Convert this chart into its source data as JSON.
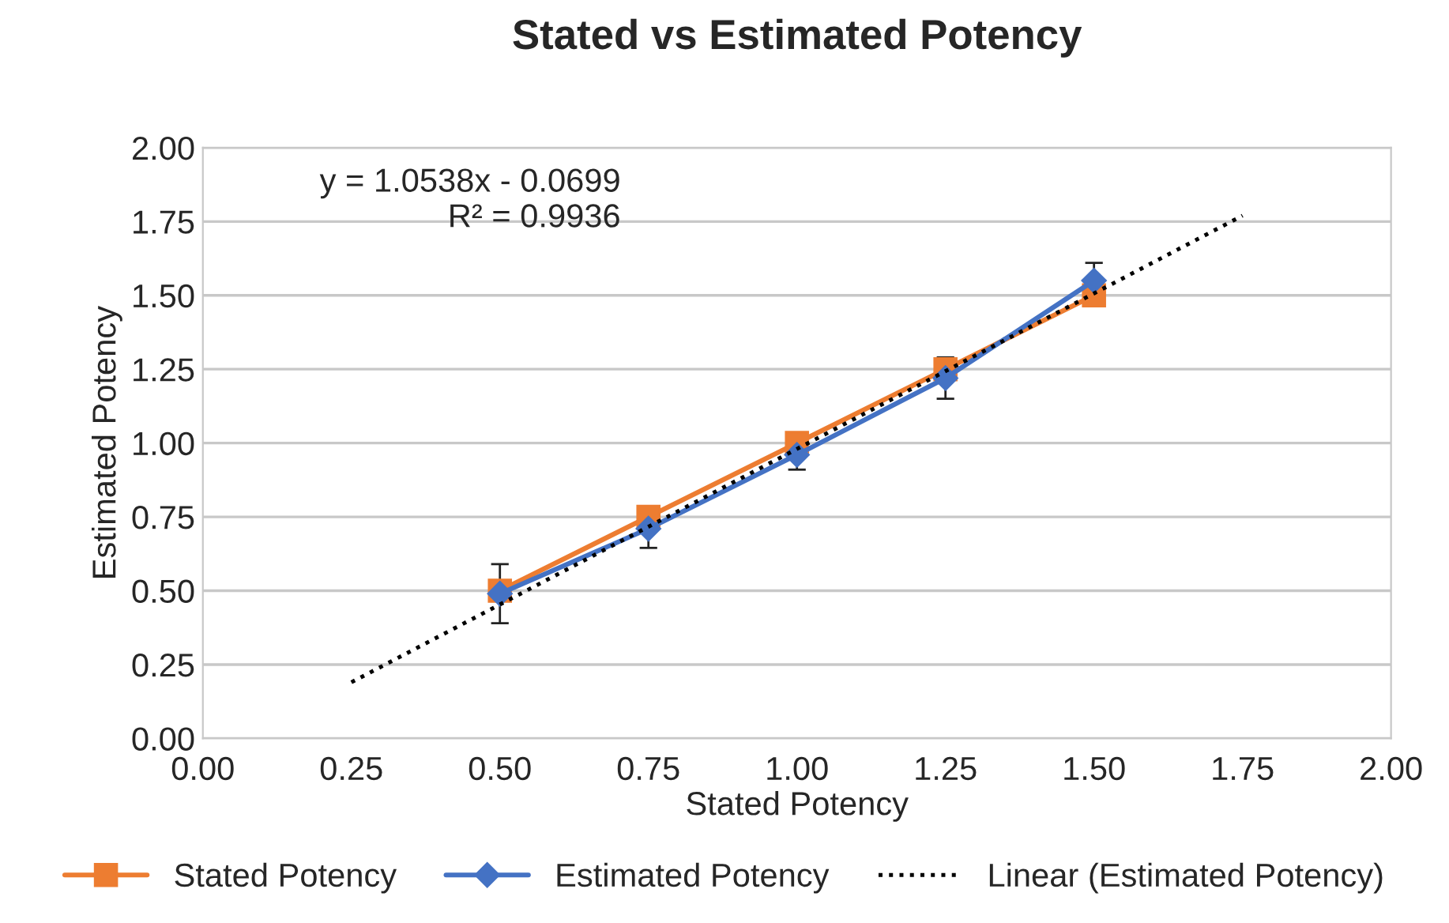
{
  "chart_data": {
    "type": "line",
    "title": "Stated vs Estimated Potency",
    "xlabel": "Stated Potency",
    "ylabel": "Estimated Potency",
    "xlim": [
      0,
      2
    ],
    "xticks": [
      {
        "value": 0,
        "label": "0.00"
      },
      {
        "value": 0.25,
        "label": "0.25"
      },
      {
        "value": 0.5,
        "label": "0.50"
      },
      {
        "value": 0.75,
        "label": "0.75"
      },
      {
        "value": 1,
        "label": "1.00"
      },
      {
        "value": 1.25,
        "label": "1.25"
      },
      {
        "value": 1.5,
        "label": "1.50"
      },
      {
        "value": 1.75,
        "label": "1.75"
      },
      {
        "value": 2,
        "label": "2.00"
      }
    ],
    "ylim": [
      0,
      2
    ],
    "yticks": [
      {
        "value": 0,
        "label": "0.00"
      },
      {
        "value": 0.25,
        "label": "0.25"
      },
      {
        "value": 0.5,
        "label": "0.50"
      },
      {
        "value": 0.75,
        "label": "0.75"
      },
      {
        "value": 1,
        "label": "1.00"
      },
      {
        "value": 1.25,
        "label": "1.25"
      },
      {
        "value": 1.5,
        "label": "1.50"
      },
      {
        "value": 1.75,
        "label": "1.75"
      },
      {
        "value": 2,
        "label": "2.00"
      }
    ],
    "grid": "y",
    "legend": "bottom",
    "annotations": [
      "y = 1.0538x - 0.0699\nR² = 0.9936"
    ],
    "series": [
      {
        "name": "Stated Potency",
        "color": "#ed7d31",
        "marker": "square",
        "line_style": "solid",
        "x": [
          0.5,
          0.75,
          1.0,
          1.25,
          1.5
        ],
        "values": [
          0.5,
          0.75,
          1.0,
          1.25,
          1.5
        ]
      },
      {
        "name": "Estimated Potency",
        "color": "#4472c4",
        "marker": "diamond",
        "line_style": "solid",
        "x": [
          0.5,
          0.75,
          1.0,
          1.25,
          1.5
        ],
        "values": [
          0.49,
          0.71,
          0.96,
          1.22,
          1.55
        ],
        "errors": [
          0.1,
          0.065,
          0.05,
          0.07,
          0.06
        ]
      },
      {
        "name": "Linear (Estimated Potency)",
        "color": "#000000",
        "marker": "none",
        "line_style": "dotted",
        "x": [
          0.25,
          1.75
        ],
        "values": [
          0.19,
          1.77
        ]
      }
    ]
  }
}
